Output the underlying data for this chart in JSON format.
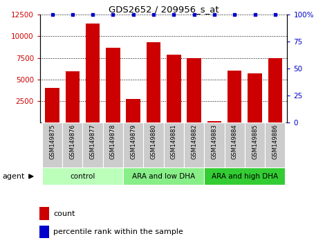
{
  "title": "GDS2652 / 209956_s_at",
  "samples": [
    "GSM149875",
    "GSM149876",
    "GSM149877",
    "GSM149878",
    "GSM149879",
    "GSM149880",
    "GSM149881",
    "GSM149882",
    "GSM149883",
    "GSM149884",
    "GSM149885",
    "GSM149886"
  ],
  "counts": [
    4000,
    5900,
    11500,
    8700,
    2700,
    9300,
    7900,
    7500,
    200,
    6000,
    5700,
    7500
  ],
  "percentile": [
    100,
    100,
    100,
    100,
    100,
    100,
    100,
    100,
    100,
    100,
    100,
    100
  ],
  "bar_color": "#cc0000",
  "dot_color": "#0000cc",
  "ylim_left": [
    0,
    12500
  ],
  "ylim_right": [
    0,
    100
  ],
  "yticks_left": [
    2500,
    5000,
    7500,
    10000,
    12500
  ],
  "ytick_labels_left": [
    "2500",
    "5000",
    "7500",
    "10000",
    "12500"
  ],
  "yticks_right": [
    0,
    25,
    50,
    75,
    100
  ],
  "ytick_labels_right": [
    "0",
    "25",
    "50",
    "75",
    "100%"
  ],
  "groups": [
    {
      "label": "control",
      "start": 0,
      "end": 3,
      "color": "#bbffbb"
    },
    {
      "label": "ARA and low DHA",
      "start": 4,
      "end": 7,
      "color": "#88ee88"
    },
    {
      "label": "ARA and high DHA",
      "start": 8,
      "end": 11,
      "color": "#33cc33"
    }
  ],
  "agent_label": "agent",
  "legend_count_label": "count",
  "legend_pct_label": "percentile rank within the sample",
  "background_color": "#ffffff",
  "plot_bg_color": "#ffffff",
  "tick_label_color_left": "#cc0000",
  "tick_label_color_right": "#0000cc",
  "title_color": "#000000",
  "grid_color": "#000000",
  "sample_bg_color": "#cccccc"
}
